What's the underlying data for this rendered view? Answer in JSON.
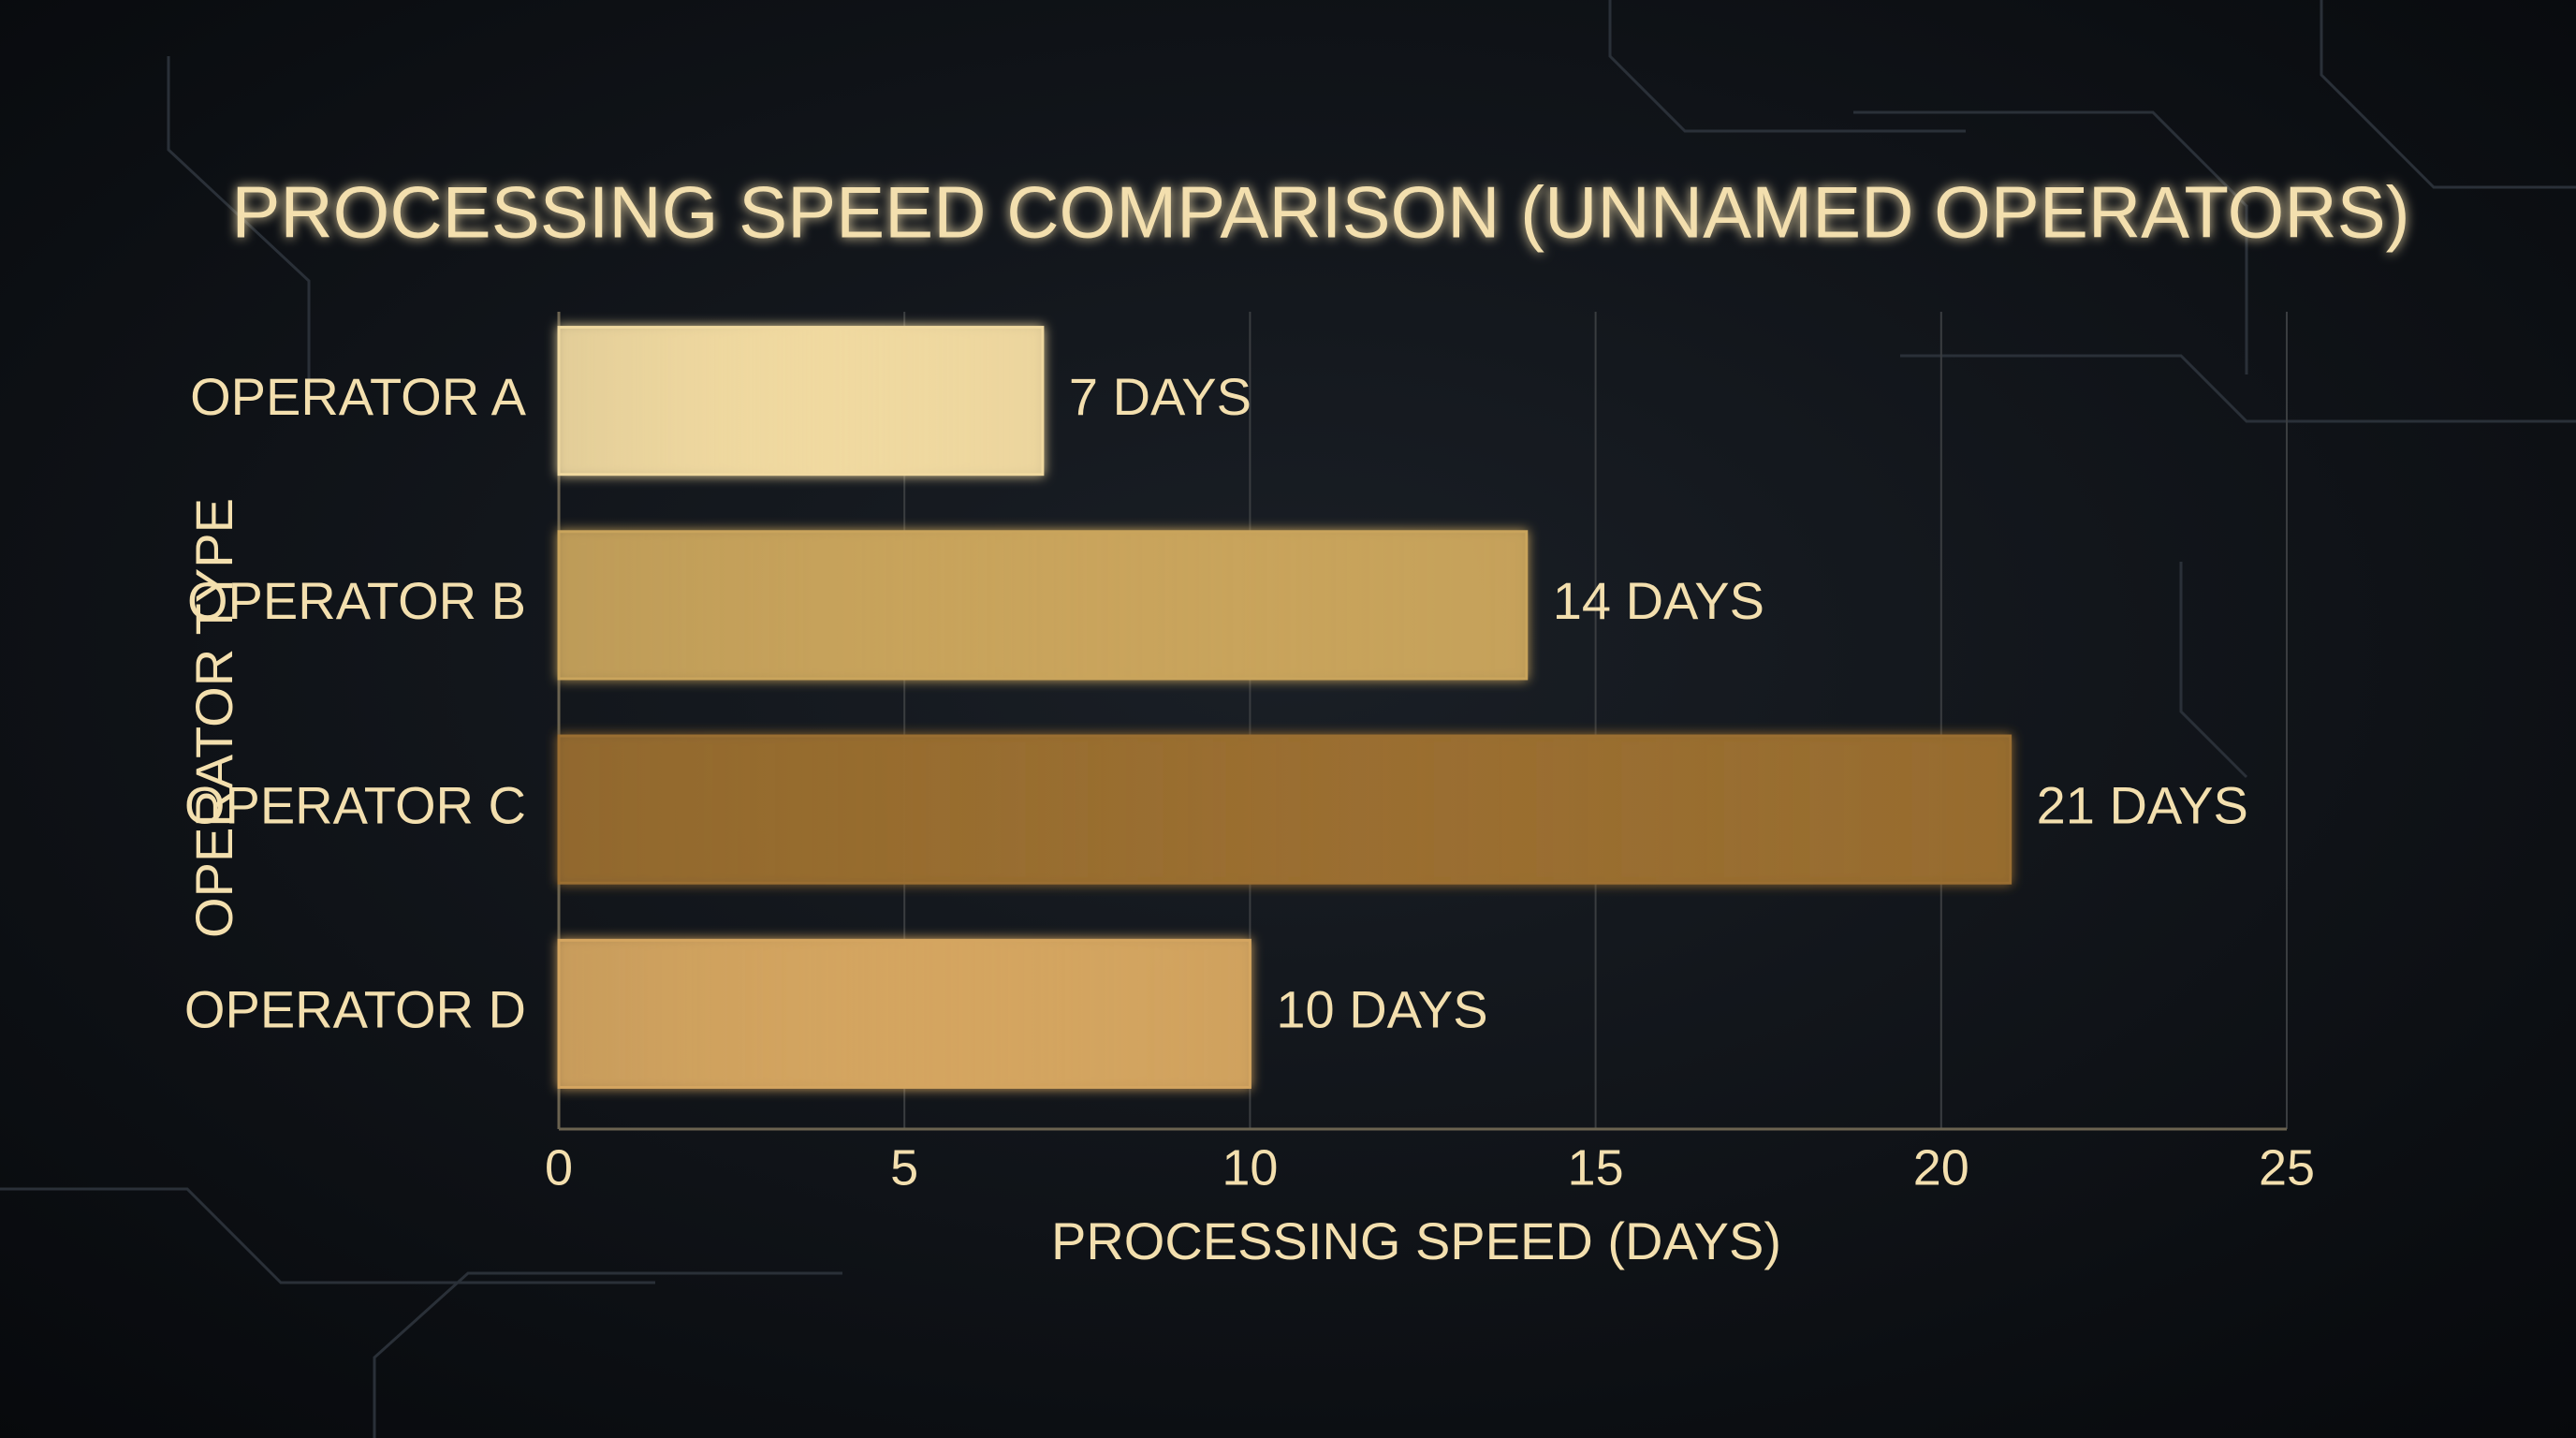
{
  "chart_data": {
    "type": "bar",
    "orientation": "horizontal",
    "title": "PROCESSING SPEED COMPARISON (UNNAMED OPERATORS)",
    "x_label": "PROCESSING SPEED (DAYS)",
    "y_label": "OPERATOR TYPE",
    "categories": [
      "OPERATOR A",
      "OPERATOR B",
      "OPERATOR C",
      "OPERATOR D"
    ],
    "values": [
      7,
      14,
      21,
      10
    ],
    "value_labels": [
      "7 DAYS",
      "14 DAYS",
      "21 DAYS",
      "10 DAYS"
    ],
    "colors": [
      "#f0d9a0",
      "#c9a45c",
      "#9a6e30",
      "#d4a560"
    ],
    "xlim": [
      0,
      25
    ],
    "xticks": [
      0,
      5,
      10,
      15,
      20,
      25
    ],
    "grid": true
  }
}
